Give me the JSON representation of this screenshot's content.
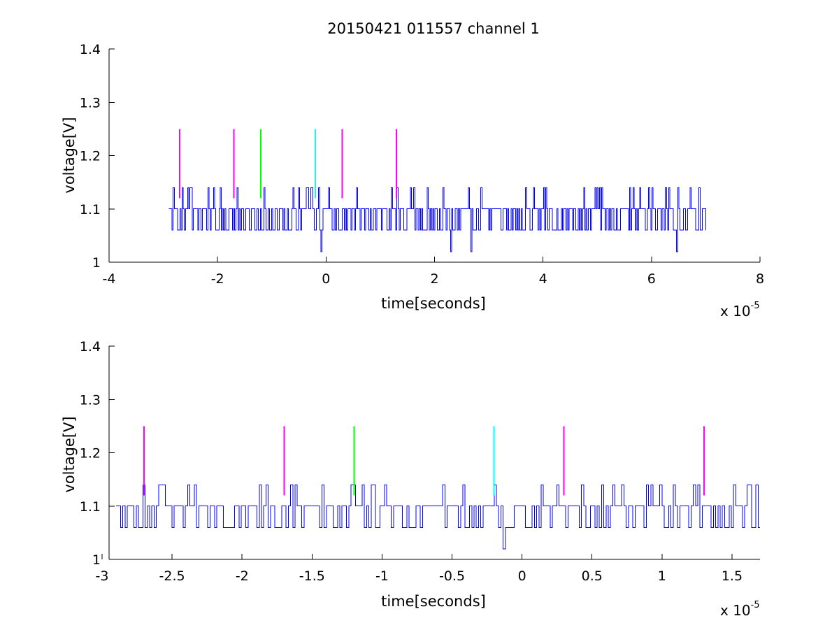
{
  "chart_data": [
    {
      "type": "line",
      "title": "20150421 011557 channel 1",
      "xlabel": "time[seconds]",
      "ylabel": "voltage[V]",
      "x_multiplier_base": "x 10",
      "x_multiplier_exponent": "-5",
      "xlim": [
        -4,
        8
      ],
      "ylim": [
        1,
        1.4
      ],
      "xticks": [
        -4,
        -2,
        0,
        2,
        4,
        6,
        8
      ],
      "xtick_labels": [
        "-4",
        "-2",
        "0",
        "2",
        "4",
        "6",
        "8"
      ],
      "yticks": [
        1,
        1.1,
        1.2,
        1.3,
        1.4
      ],
      "ytick_labels": [
        "1",
        "1.1",
        "1.2",
        "1.3",
        "1.4"
      ],
      "grid": false,
      "series": [
        {
          "color": "#0000ff",
          "x_range": [
            -2.9,
            7.0
          ],
          "baseline": 1.1,
          "levels": [
            1.02,
            1.06,
            1.1,
            1.14
          ],
          "min_dips": [
            -0.1,
            2.3,
            2.67,
            6.47
          ]
        }
      ],
      "markers": [
        {
          "x": -2.7,
          "color": "#ff00ff",
          "y_range": [
            1.12,
            1.25
          ]
        },
        {
          "x": -1.7,
          "color": "#ff00ff",
          "y_range": [
            1.12,
            1.25
          ]
        },
        {
          "x": -1.2,
          "color": "#00ff00",
          "y_range": [
            1.12,
            1.25
          ]
        },
        {
          "x": -0.2,
          "color": "#00ffff",
          "y_range": [
            1.12,
            1.25
          ]
        },
        {
          "x": 0.3,
          "color": "#ff00ff",
          "y_range": [
            1.12,
            1.25
          ]
        },
        {
          "x": 1.3,
          "color": "#ff00ff",
          "y_range": [
            1.12,
            1.25
          ]
        }
      ]
    },
    {
      "type": "line",
      "title": "",
      "xlabel": "time[seconds]",
      "ylabel": "voltage[V]",
      "x_multiplier_base": "x 10",
      "x_multiplier_exponent": "-5",
      "xlim": [
        -2.95,
        1.7
      ],
      "ylim": [
        1,
        1.4
      ],
      "xticks": [
        -3,
        -2.5,
        -2,
        -1.5,
        -1,
        -0.5,
        0,
        0.5,
        1,
        1.5
      ],
      "xtick_labels": [
        "-3",
        "-2.5",
        "-2",
        "-1.5",
        "-1",
        "-0.5",
        "0",
        "0.5",
        "1",
        "1.5"
      ],
      "yticks": [
        1,
        1.1,
        1.2,
        1.3,
        1.4
      ],
      "ytick_labels": [
        "1",
        "1.1",
        "1.2",
        "1.3",
        "1.4"
      ],
      "grid": false,
      "series": [
        {
          "color": "#0000ff",
          "x_range": [
            -2.9,
            1.7
          ],
          "baseline": 1.1,
          "levels": [
            1.02,
            1.06,
            1.1,
            1.14
          ],
          "min_dips": [
            -0.13
          ]
        }
      ],
      "markers": [
        {
          "x": -2.7,
          "color": "#ff00ff",
          "y_range": [
            1.12,
            1.25
          ]
        },
        {
          "x": -1.7,
          "color": "#ff00ff",
          "y_range": [
            1.12,
            1.25
          ]
        },
        {
          "x": -1.2,
          "color": "#00ff00",
          "y_range": [
            1.12,
            1.25
          ]
        },
        {
          "x": -0.2,
          "color": "#00ffff",
          "y_range": [
            1.12,
            1.25
          ]
        },
        {
          "x": 0.3,
          "color": "#ff00ff",
          "y_range": [
            1.12,
            1.25
          ]
        },
        {
          "x": 1.3,
          "color": "#ff00ff",
          "y_range": [
            1.12,
            1.25
          ]
        }
      ]
    }
  ]
}
